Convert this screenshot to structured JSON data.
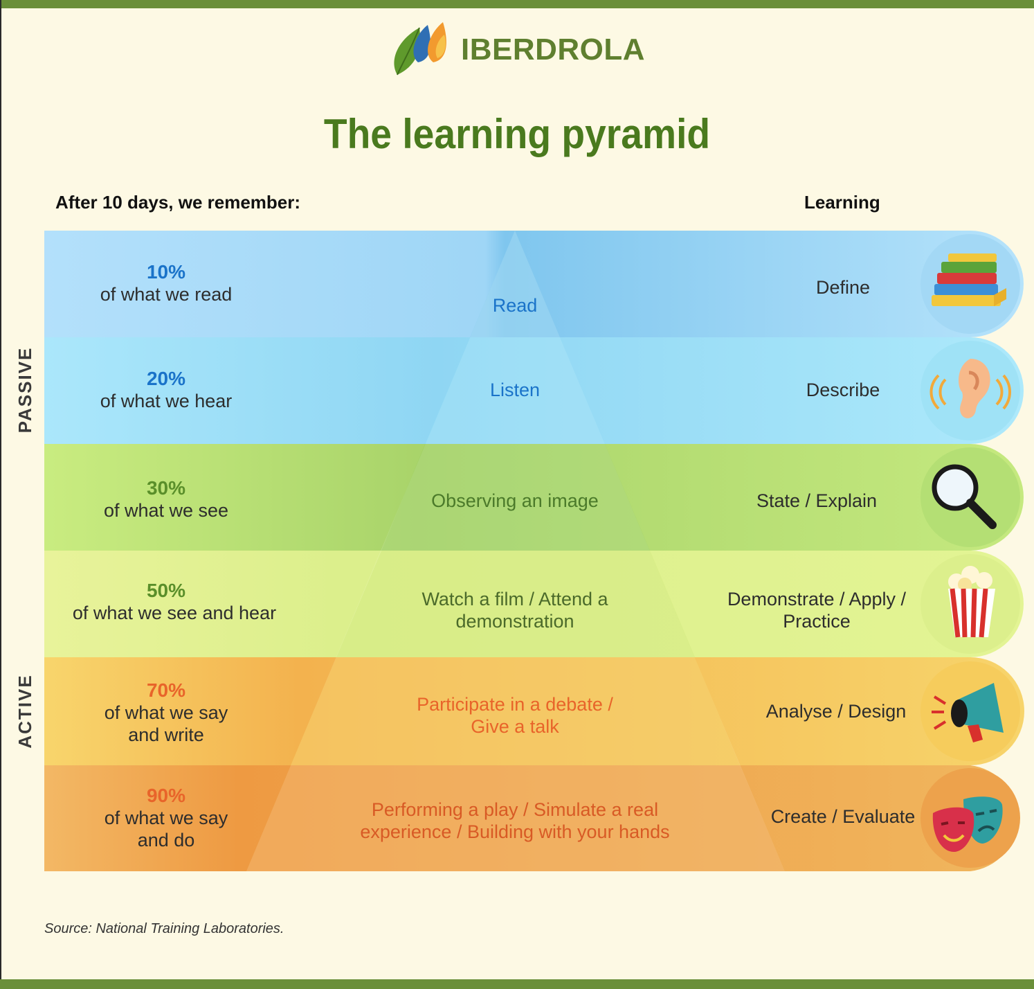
{
  "brand": {
    "name": "IBERDROLA"
  },
  "title": "The learning pyramid",
  "headers": {
    "left": "After 10 days, we remember:",
    "right": "Learning"
  },
  "side_labels": {
    "passive": "PASSIVE",
    "active": "ACTIVE"
  },
  "rows": [
    {
      "percent": "10%",
      "description": "of what we read",
      "activity": "Read",
      "learning": "Define",
      "icon": "books-icon"
    },
    {
      "percent": "20%",
      "description": "of what we hear",
      "activity": "Listen",
      "learning": "Describe",
      "icon": "ear-icon"
    },
    {
      "percent": "30%",
      "description": "of what we see",
      "activity": "Observing an image",
      "learning": "State / Explain",
      "icon": "magnifier-icon"
    },
    {
      "percent": "50%",
      "description": "of what we see and hear",
      "activity": "Watch a film / Attend a demonstration",
      "learning": "Demonstrate / Apply / Practice",
      "icon": "popcorn-icon"
    },
    {
      "percent": "70%",
      "description": "of what we say and write",
      "activity": "Participate in a debate / Give a talk",
      "learning": "Analyse / Design",
      "icon": "megaphone-icon"
    },
    {
      "percent": "90%",
      "description": "of what we say and do",
      "activity": "Performing a play / Simulate a real experience / Building with your hands",
      "learning": "Create / Evaluate",
      "icon": "theater-masks-icon"
    }
  ],
  "source": "Source: National Training Laboratories.",
  "colors": {
    "blue_dark": "#1a73c9",
    "green_text": "#5a8f2a",
    "orange_text": "#e8642a",
    "title_green": "#4a7a1e",
    "bar_green": "#6a8f3a"
  }
}
